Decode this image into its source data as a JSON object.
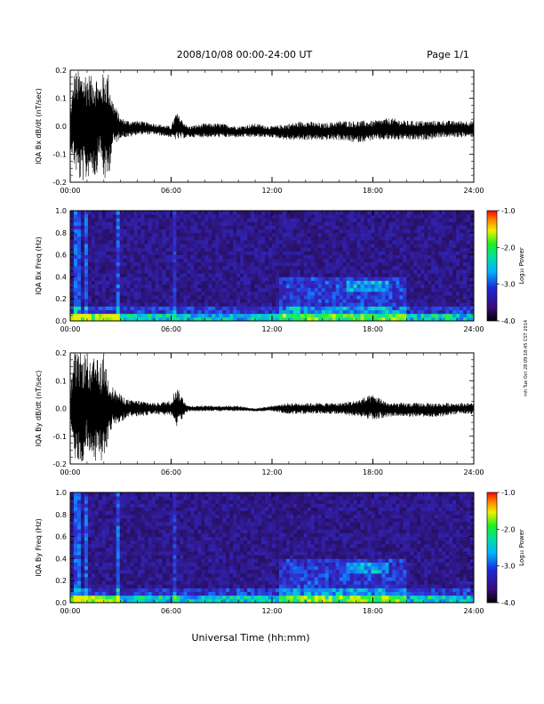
{
  "header": {
    "title": "2008/10/08  00:00-24:00 UT",
    "page": "Page 1/1"
  },
  "side_stamp": "mh Tue Oct 28 09:18:45 CST 2014",
  "chart_data": [
    {
      "type": "line",
      "ylabel": "IQA Bx dB/dt (nT/sec)",
      "ylim": [
        -0.2,
        0.2
      ],
      "yticks": [
        "0.2",
        "0.1",
        "0.0",
        "-0.1",
        "-0.2"
      ],
      "xlim": [
        0,
        24
      ],
      "xticks": [
        "00:00",
        "06:00",
        "12:00",
        "18:00",
        "24:00"
      ],
      "x_hours": [
        0,
        0.25,
        0.5,
        0.75,
        1.0,
        1.25,
        1.5,
        1.75,
        2.0,
        2.25,
        2.5,
        3,
        3.5,
        4,
        5,
        6,
        6.3,
        7,
        8,
        9,
        10,
        11,
        12,
        13,
        14,
        15,
        16,
        17,
        18,
        19,
        20,
        21,
        22,
        23,
        24
      ],
      "envelope_upper": [
        0.05,
        0.2,
        0.2,
        0.2,
        0.2,
        0.18,
        0.2,
        0.15,
        0.2,
        0.2,
        0.1,
        0.03,
        0.02,
        0.02,
        0.01,
        0.0,
        0.05,
        0.0,
        0.01,
        0.01,
        0.0,
        0.01,
        0.0,
        0.01,
        0.02,
        0.01,
        0.02,
        0.02,
        0.02,
        0.03,
        0.02,
        0.02,
        0.02,
        0.02,
        0.02
      ],
      "envelope_lower": [
        -0.07,
        -0.15,
        -0.2,
        -0.2,
        -0.2,
        -0.15,
        -0.2,
        -0.1,
        -0.2,
        -0.2,
        -0.08,
        -0.04,
        -0.04,
        -0.03,
        -0.03,
        -0.04,
        -0.05,
        -0.04,
        -0.04,
        -0.04,
        -0.04,
        -0.04,
        -0.04,
        -0.05,
        -0.05,
        -0.05,
        -0.05,
        -0.06,
        -0.05,
        -0.05,
        -0.05,
        -0.05,
        -0.04,
        -0.04,
        -0.04
      ]
    },
    {
      "type": "heatmap",
      "ylabel": "IQA Bx Freq (Hz)",
      "ylim": [
        0.0,
        1.0
      ],
      "yticks": [
        "1.0",
        "0.8",
        "0.6",
        "0.4",
        "0.2",
        "0.0"
      ],
      "xlim": [
        0,
        24
      ],
      "xticks": [
        "00:00",
        "06:00",
        "12:00",
        "18:00",
        "24:00"
      ],
      "colorbar": {
        "label": "Log₁₀ Power",
        "range": [
          -4.0,
          -1.0
        ],
        "ticks": [
          "-1.0",
          "-2.0",
          "-3.0",
          "-4.0"
        ]
      }
    },
    {
      "type": "line",
      "ylabel": "IQA By dB/dt (nT/sec)",
      "ylim": [
        -0.2,
        0.2
      ],
      "yticks": [
        "0.2",
        "0.1",
        "0.0",
        "-0.1",
        "-0.2"
      ],
      "xlim": [
        0,
        24
      ],
      "xticks": [
        "00:00",
        "06:00",
        "12:00",
        "18:00",
        "24:00"
      ],
      "x_hours": [
        0,
        0.25,
        0.5,
        0.75,
        1.0,
        1.25,
        1.5,
        1.75,
        2.0,
        2.25,
        2.5,
        3,
        3.5,
        4,
        5,
        6,
        6.3,
        7,
        8,
        9,
        10,
        11,
        12,
        13,
        14,
        15,
        16,
        17,
        18,
        19,
        20,
        21,
        22,
        23,
        24
      ],
      "envelope_upper": [
        0.06,
        0.2,
        0.2,
        0.2,
        0.2,
        0.15,
        0.2,
        0.15,
        0.2,
        0.12,
        0.08,
        0.05,
        0.03,
        0.03,
        0.02,
        0.03,
        0.08,
        0.01,
        0.01,
        0.01,
        0.01,
        0.0,
        0.01,
        0.02,
        0.02,
        0.02,
        0.02,
        0.03,
        0.05,
        0.02,
        0.02,
        0.02,
        0.02,
        0.02,
        0.02
      ],
      "envelope_lower": [
        -0.07,
        -0.2,
        -0.2,
        -0.2,
        -0.15,
        -0.2,
        -0.2,
        -0.18,
        -0.2,
        -0.12,
        -0.07,
        -0.05,
        -0.03,
        -0.03,
        -0.02,
        -0.03,
        -0.07,
        -0.01,
        -0.01,
        -0.01,
        -0.01,
        -0.01,
        -0.01,
        -0.02,
        -0.02,
        -0.02,
        -0.02,
        -0.03,
        -0.04,
        -0.03,
        -0.03,
        -0.03,
        -0.03,
        -0.02,
        -0.02
      ]
    },
    {
      "type": "heatmap",
      "ylabel": "IQA By Freq (Hz)",
      "ylim": [
        0.0,
        1.0
      ],
      "yticks": [
        "1.0",
        "0.8",
        "0.6",
        "0.4",
        "0.2",
        "0.0"
      ],
      "xlim": [
        0,
        24
      ],
      "xticks": [
        "00:00",
        "06:00",
        "12:00",
        "18:00",
        "24:00"
      ],
      "colorbar": {
        "label": "Log₁₀ Power",
        "range": [
          -4.0,
          -1.0
        ],
        "ticks": [
          "-1.0",
          "-2.0",
          "-3.0",
          "-4.0"
        ]
      }
    }
  ],
  "xaxis_label": "Universal Time (hh:mm)",
  "colors": {
    "axis": "#000000",
    "line": "#000000",
    "background": "#ffffff",
    "heatmap_low": "#1a0a3a",
    "heatmap_mid": "#3b2aa8",
    "heatmap_high": "#00ff66"
  }
}
